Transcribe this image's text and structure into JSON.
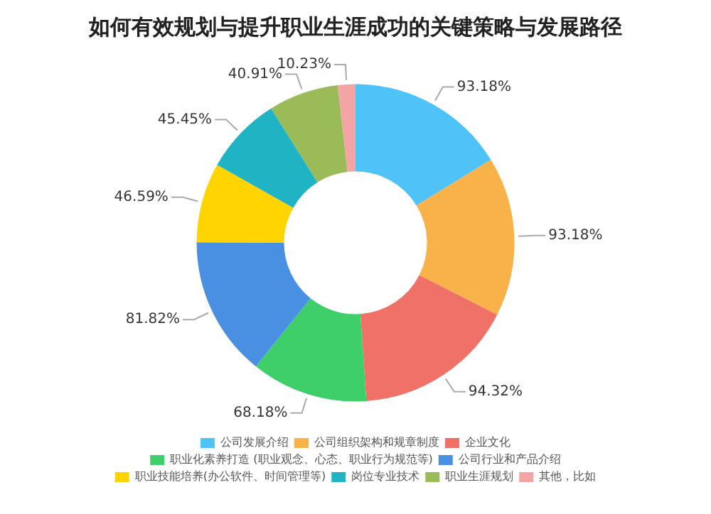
{
  "chart_data": {
    "type": "donut",
    "title": "如何有效规划与提升职业生涯成功的关键策略与发展路径",
    "categories": [
      "公司发展介绍",
      "公司组织架构和规章制度",
      "企业文化",
      "职业化素养打造 (职业观念、心态、职业行为规范等)",
      "公司行业和产品介绍",
      "职业技能培养(办公软件、时间管理等)",
      "岗位专业技术",
      "职业生涯规划",
      "其他，比如"
    ],
    "values": [
      93.18,
      93.18,
      94.32,
      68.18,
      81.82,
      46.59,
      45.45,
      40.91,
      10.23
    ],
    "value_labels": [
      "93.18%",
      "93.18%",
      "94.32%",
      "68.18%",
      "81.82%",
      "46.59%",
      "45.45%",
      "40.91%",
      "10.23%"
    ],
    "colors": [
      "#4fc3f7",
      "#f9b24a",
      "#f07167",
      "#3ecf6a",
      "#4a90e2",
      "#ffd400",
      "#1fb3c4",
      "#9bbb59",
      "#f4a4a4"
    ],
    "legend": "bottom"
  }
}
